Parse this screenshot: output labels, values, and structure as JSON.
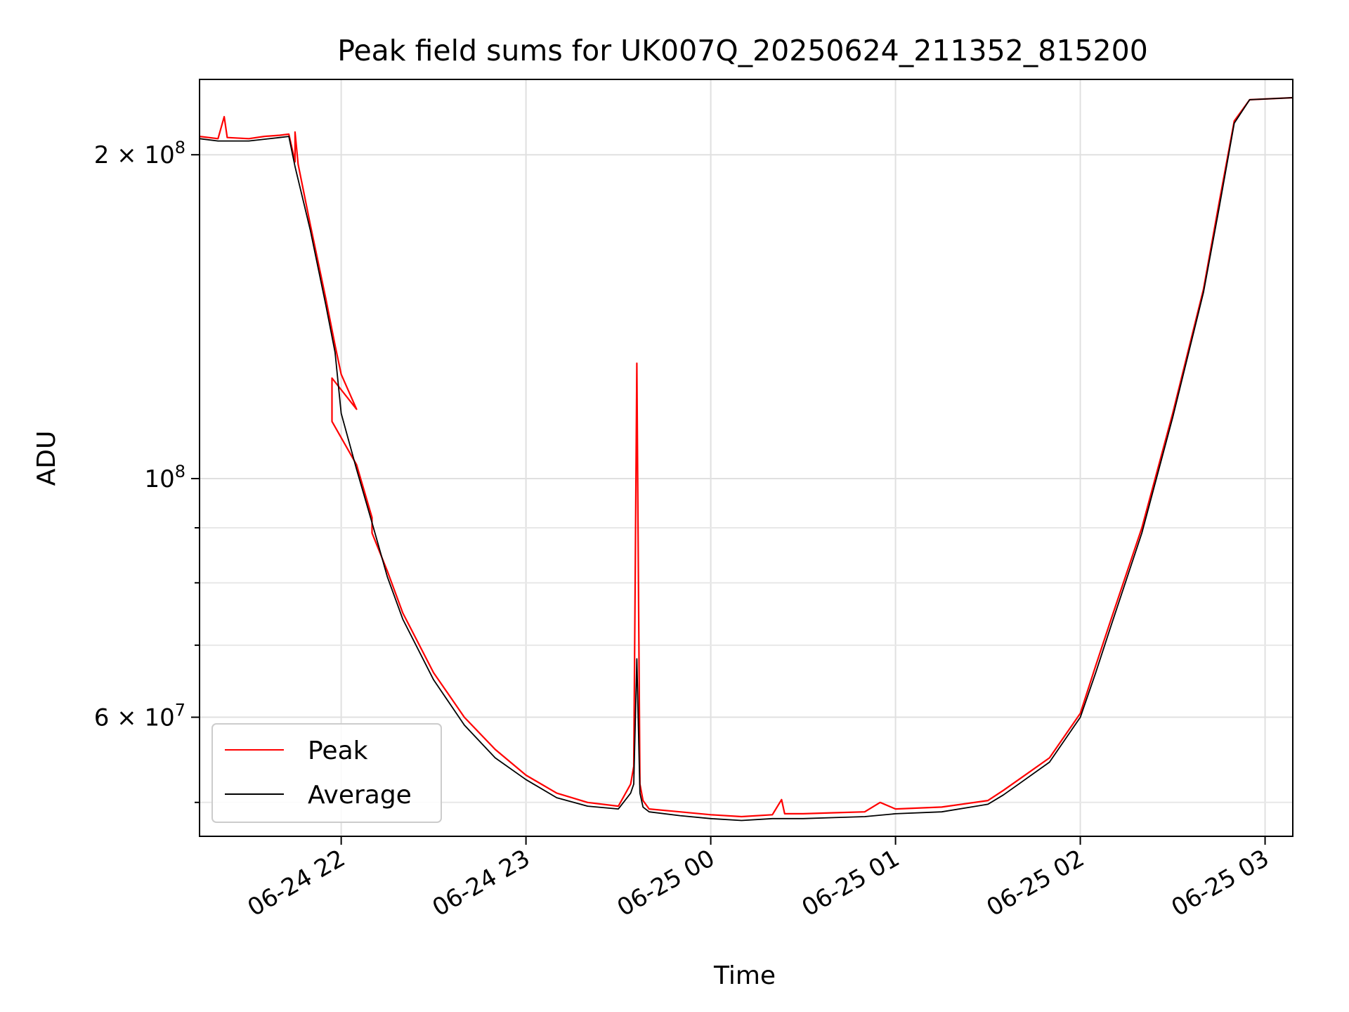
{
  "chart_data": {
    "type": "line",
    "title": "Peak field sums for UK007Q_20250624_211352_815200",
    "xlabel": "Time",
    "ylabel": "ADU",
    "x_scale": "time",
    "y_scale": "log",
    "xlim": [
      "2025-06-24 21:14",
      "2025-06-25 03:09"
    ],
    "ylim": [
      46500000,
      235000000
    ],
    "x_ticks": [
      "2025-06-24 22:00",
      "2025-06-24 23:00",
      "2025-06-25 00:00",
      "2025-06-25 01:00",
      "2025-06-25 02:00",
      "2025-06-25 03:00"
    ],
    "x_tick_labels": [
      "06-24 22",
      "06-24 23",
      "06-25 00",
      "06-25 01",
      "06-25 02",
      "06-25 03"
    ],
    "y_ticks": [
      {
        "value": 200000000,
        "base": "2 × 10",
        "exp": "8"
      },
      {
        "value": 100000000,
        "base": "10",
        "exp": "8"
      },
      {
        "value": 60000000,
        "base": "6 × 10",
        "exp": "7"
      }
    ],
    "y_minor_ticks": [
      50000000,
      70000000,
      80000000,
      90000000
    ],
    "grid": true,
    "legend_position": "lower-left",
    "series": [
      {
        "name": "Peak",
        "color": "#ff0000",
        "points": [
          [
            "2025-06-24 21:14",
            208000000
          ],
          [
            "2025-06-24 21:20",
            207000000
          ],
          [
            "2025-06-24 21:22",
            217000000
          ],
          [
            "2025-06-24 21:23",
            207500000
          ],
          [
            "2025-06-24 21:30",
            207000000
          ],
          [
            "2025-06-24 21:35",
            208000000
          ],
          [
            "2025-06-24 21:40",
            208500000
          ],
          [
            "2025-06-24 21:43",
            209000000
          ],
          [
            "2025-06-24 21:45",
            197000000
          ],
          [
            "2025-06-24 21:45",
            210000000
          ],
          [
            "2025-06-24 21:46",
            196000000
          ],
          [
            "2025-06-24 21:50",
            172000000
          ],
          [
            "2025-06-24 21:55",
            147000000
          ],
          [
            "2025-06-24 21:58",
            133000000
          ],
          [
            "2025-06-24 22:00",
            125000000
          ],
          [
            "2025-06-24 22:05",
            116000000
          ],
          [
            "2025-06-24 21:57",
            124000000
          ],
          [
            "2025-06-24 21:57",
            113000000
          ],
          [
            "2025-06-24 22:05",
            103000000
          ],
          [
            "2025-06-24 22:10",
            92000000
          ],
          [
            "2025-06-24 22:10",
            89000000
          ],
          [
            "2025-06-24 22:15",
            82000000
          ],
          [
            "2025-06-24 22:20",
            75000000
          ],
          [
            "2025-06-24 22:30",
            66000000
          ],
          [
            "2025-06-24 22:40",
            60000000
          ],
          [
            "2025-06-24 22:50",
            56000000
          ],
          [
            "2025-06-24 23:00",
            53000000
          ],
          [
            "2025-06-24 23:10",
            51000000
          ],
          [
            "2025-06-24 23:20",
            50000000
          ],
          [
            "2025-06-24 23:30",
            49600000
          ],
          [
            "2025-06-24 23:34",
            52000000
          ],
          [
            "2025-06-24 23:35",
            54000000
          ],
          [
            "2025-06-24 23:36",
            128000000
          ],
          [
            "2025-06-24 23:37",
            52000000
          ],
          [
            "2025-06-24 23:38",
            50200000
          ],
          [
            "2025-06-24 23:40",
            49300000
          ],
          [
            "2025-06-24 23:50",
            49000000
          ],
          [
            "2025-06-25 00:00",
            48700000
          ],
          [
            "2025-06-25 00:10",
            48500000
          ],
          [
            "2025-06-25 00:20",
            48700000
          ],
          [
            "2025-06-25 00:23",
            50300000
          ],
          [
            "2025-06-25 00:24",
            48800000
          ],
          [
            "2025-06-25 00:30",
            48800000
          ],
          [
            "2025-06-25 00:40",
            48900000
          ],
          [
            "2025-06-25 00:50",
            49000000
          ],
          [
            "2025-06-25 00:55",
            50000000
          ],
          [
            "2025-06-25 01:00",
            49300000
          ],
          [
            "2025-06-25 01:15",
            49500000
          ],
          [
            "2025-06-25 01:30",
            50200000
          ],
          [
            "2025-06-25 01:35",
            51300000
          ],
          [
            "2025-06-25 01:40",
            52500000
          ],
          [
            "2025-06-25 01:50",
            55000000
          ],
          [
            "2025-06-25 02:00",
            60500000
          ],
          [
            "2025-06-25 02:05",
            67000000
          ],
          [
            "2025-06-25 02:10",
            74000000
          ],
          [
            "2025-06-25 02:20",
            90000000
          ],
          [
            "2025-06-25 02:30",
            115000000
          ],
          [
            "2025-06-25 02:40",
            150000000
          ],
          [
            "2025-06-25 02:45",
            180000000
          ],
          [
            "2025-06-25 02:50",
            215000000
          ],
          [
            "2025-06-25 02:55",
            225000000
          ],
          [
            "2025-06-25 03:09",
            226000000
          ]
        ]
      },
      {
        "name": "Average",
        "color": "#000000",
        "points": [
          [
            "2025-06-24 21:14",
            207000000
          ],
          [
            "2025-06-24 21:20",
            206000000
          ],
          [
            "2025-06-24 21:30",
            206000000
          ],
          [
            "2025-06-24 21:40",
            207500000
          ],
          [
            "2025-06-24 21:43",
            208000000
          ],
          [
            "2025-06-24 21:45",
            195000000
          ],
          [
            "2025-06-24 21:50",
            170000000
          ],
          [
            "2025-06-24 21:55",
            145000000
          ],
          [
            "2025-06-24 21:58",
            131000000
          ],
          [
            "2025-06-24 22:00",
            115000000
          ],
          [
            "2025-06-24 22:05",
            102000000
          ],
          [
            "2025-06-24 22:10",
            91000000
          ],
          [
            "2025-06-24 22:15",
            81000000
          ],
          [
            "2025-06-24 22:20",
            74000000
          ],
          [
            "2025-06-24 22:30",
            65000000
          ],
          [
            "2025-06-24 22:40",
            59000000
          ],
          [
            "2025-06-24 22:50",
            55000000
          ],
          [
            "2025-06-24 23:00",
            52500000
          ],
          [
            "2025-06-24 23:10",
            50500000
          ],
          [
            "2025-06-24 23:20",
            49600000
          ],
          [
            "2025-06-24 23:30",
            49300000
          ],
          [
            "2025-06-24 23:34",
            51000000
          ],
          [
            "2025-06-24 23:35",
            52000000
          ],
          [
            "2025-06-24 23:36",
            68000000
          ],
          [
            "2025-06-24 23:37",
            51000000
          ],
          [
            "2025-06-24 23:38",
            49500000
          ],
          [
            "2025-06-24 23:40",
            49000000
          ],
          [
            "2025-06-24 23:50",
            48600000
          ],
          [
            "2025-06-25 00:00",
            48300000
          ],
          [
            "2025-06-25 00:10",
            48100000
          ],
          [
            "2025-06-25 00:20",
            48300000
          ],
          [
            "2025-06-25 00:30",
            48300000
          ],
          [
            "2025-06-25 00:40",
            48400000
          ],
          [
            "2025-06-25 00:50",
            48500000
          ],
          [
            "2025-06-25 01:00",
            48800000
          ],
          [
            "2025-06-25 01:15",
            49000000
          ],
          [
            "2025-06-25 01:30",
            49800000
          ],
          [
            "2025-06-25 01:35",
            50800000
          ],
          [
            "2025-06-25 01:40",
            52000000
          ],
          [
            "2025-06-25 01:50",
            54500000
          ],
          [
            "2025-06-25 02:00",
            60000000
          ],
          [
            "2025-06-25 02:05",
            66000000
          ],
          [
            "2025-06-25 02:10",
            73000000
          ],
          [
            "2025-06-25 02:20",
            89000000
          ],
          [
            "2025-06-25 02:30",
            114000000
          ],
          [
            "2025-06-25 02:40",
            149000000
          ],
          [
            "2025-06-25 02:45",
            178000000
          ],
          [
            "2025-06-25 02:50",
            214000000
          ],
          [
            "2025-06-25 02:55",
            225000000
          ],
          [
            "2025-06-25 03:09",
            226000000
          ]
        ]
      }
    ]
  }
}
